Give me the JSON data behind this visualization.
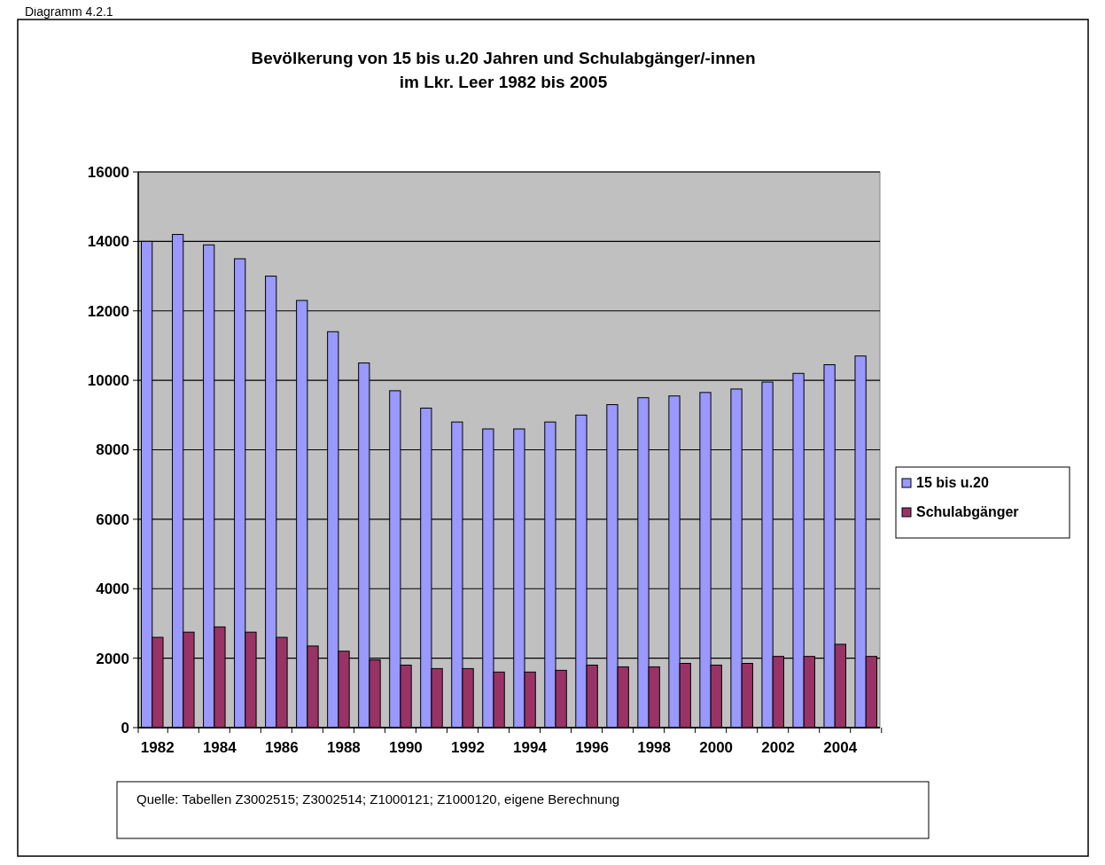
{
  "chart_data": {
    "type": "bar",
    "title": "Bevölkerung von 15 bis u.20 Jahren und Schulabgänger/-innen\nim Lkr. Leer 1982 bis 2005",
    "categories": [
      "1982",
      null,
      "1984",
      null,
      "1986",
      null,
      "1988",
      null,
      "1990",
      null,
      "1992",
      null,
      "1994",
      null,
      "1996",
      null,
      "1998",
      null,
      "2000",
      null,
      "2002",
      null,
      "2004",
      null
    ],
    "series": [
      {
        "name": "15 bis u.20",
        "color": "#9999ff",
        "values": [
          14000,
          14200,
          13900,
          13500,
          13000,
          12300,
          11400,
          10500,
          9700,
          9200,
          8800,
          8600,
          8600,
          8800,
          9000,
          9300,
          9500,
          9550,
          9650,
          9750,
          9950,
          10200,
          10450,
          10700
        ]
      },
      {
        "name": "Schulabgänger",
        "color": "#993366",
        "values": [
          2600,
          2750,
          2900,
          2750,
          2600,
          2350,
          2200,
          1950,
          1800,
          1700,
          1700,
          1600,
          1600,
          1650,
          1800,
          1750,
          1750,
          1850,
          1800,
          1850,
          2050,
          2050,
          2400,
          2050
        ]
      }
    ],
    "ylim": [
      0,
      16000
    ],
    "yticks": [
      0,
      2000,
      4000,
      6000,
      8000,
      10000,
      12000,
      14000,
      16000
    ],
    "grid": "y",
    "legend": "right",
    "annotations": [
      "Diagramm 4.2.1",
      "Quelle: Tabellen Z3002515; Z3002514; Z1000121; Z1000120, eigene Berechnung"
    ]
  }
}
